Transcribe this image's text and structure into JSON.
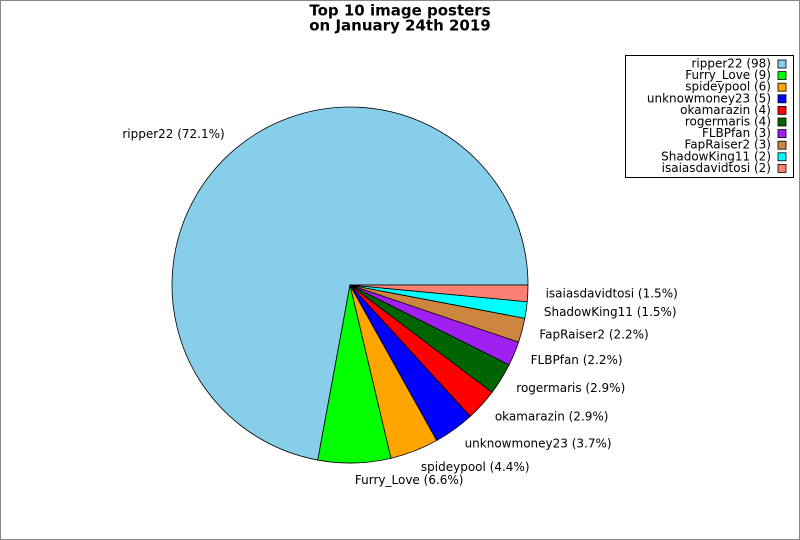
{
  "chart_data": {
    "type": "pie",
    "title": "Top 10 image posters",
    "subtitle": "on January 24th 2019",
    "values": [
      72.1,
      6.6,
      4.4,
      3.7,
      2.9,
      2.9,
      2.2,
      2.2,
      1.5,
      1.5
    ],
    "value_labels": [
      "ripper22 (72.1%)",
      "Furry_Love (6.6%)",
      "spideypool (4.4%)",
      "unknowmoney23 (3.7%)",
      "okamarazin (2.9%)",
      "rogermaris (2.9%)",
      "FLBPfan (2.2%)",
      "FapRaiser2 (2.2%)",
      "ShadowKing11 (1.5%)",
      "isaiasdavidtosi (1.5%)"
    ],
    "legend_labels": [
      "ripper22 (98)",
      "Furry_Love (9)",
      "spideypool (6)",
      "unknowmoney23 (5)",
      "okamarazin (4)",
      "rogermaris (4)",
      "FLBPfan (3)",
      "FapRaiser2 (3)",
      "ShadowKing11 (2)",
      "isaiasdavidtosi (2)"
    ],
    "colors": [
      "#87ceeb",
      "#00ff00",
      "#ffa500",
      "#0000ff",
      "#ff0000",
      "#006400",
      "#a020f0",
      "#cd853f",
      "#00ffff",
      "#fa8072"
    ],
    "legend_position": "upper right"
  }
}
